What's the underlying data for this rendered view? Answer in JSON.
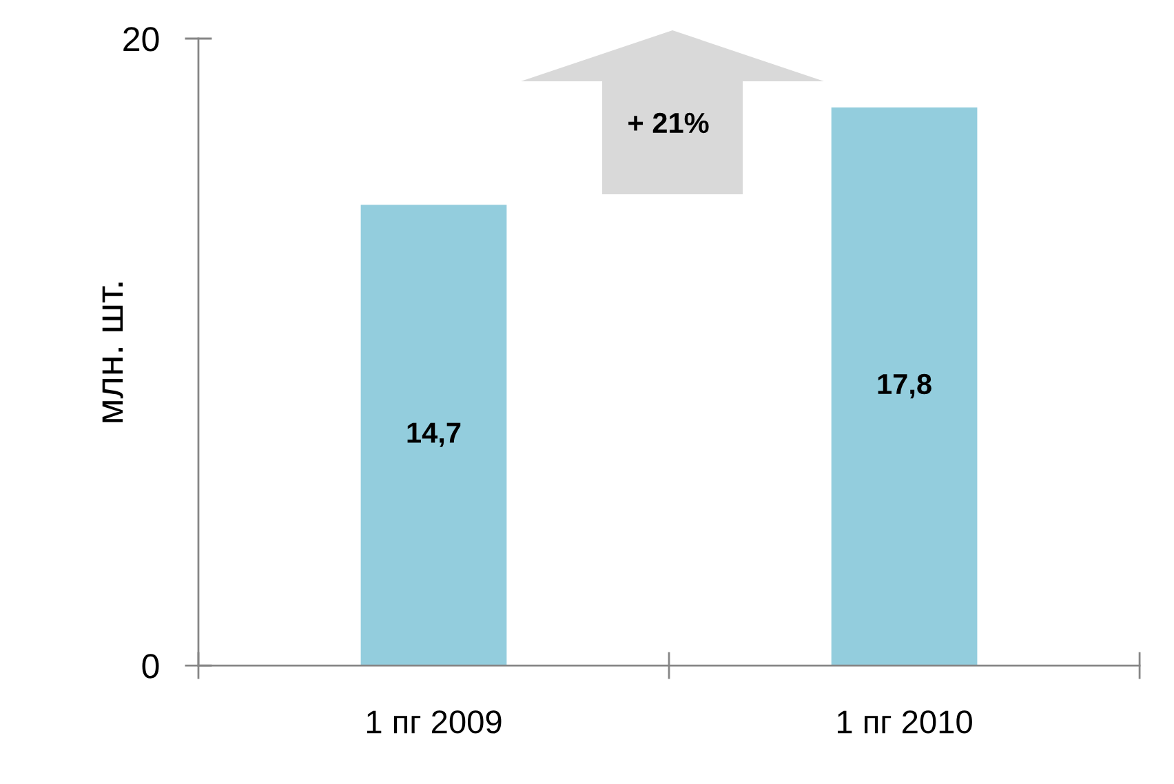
{
  "chart_data": {
    "type": "bar",
    "ylabel": "млн. шт.",
    "categories": [
      "1 пг 2009",
      "1 пг 2010"
    ],
    "values": [
      14.7,
      17.8
    ],
    "value_labels": [
      "14,7",
      "17,8"
    ],
    "color": "#93cddd",
    "ylim": [
      0,
      20
    ],
    "yticks": [
      0,
      20
    ],
    "grid": false,
    "annotations": [
      "+ 21%"
    ]
  }
}
